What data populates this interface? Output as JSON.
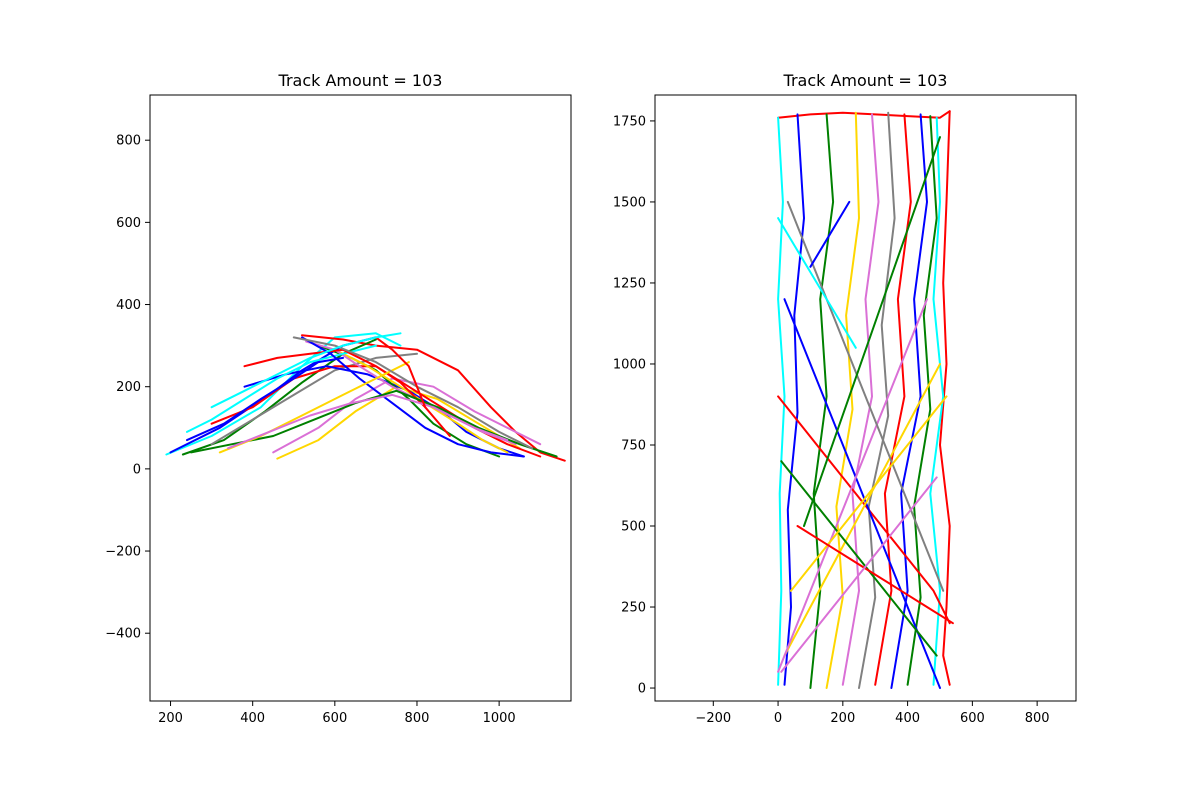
{
  "chart_data": [
    {
      "type": "line",
      "title": "Track Amount = 103",
      "xlabel": "",
      "ylabel": "",
      "xlim": [
        150,
        1175
      ],
      "ylim": [
        -565,
        910
      ],
      "xticks": [
        200,
        400,
        600,
        800,
        1000
      ],
      "yticks": [
        -400,
        -200,
        0,
        200,
        400,
        600,
        800
      ],
      "xtick_labels": [
        "200",
        "400",
        "600",
        "800",
        "1000"
      ],
      "ytick_labels": [
        "−400",
        "−200",
        "0",
        "200",
        "400",
        "600",
        "800"
      ],
      "grid": false,
      "legend": "none",
      "series_colors": [
        "#0000ff",
        "#ff0000",
        "#008000",
        "#ffd700",
        "#da70d6",
        "#00ffff",
        "#808080"
      ],
      "series": [
        {
          "color": "#00ffff",
          "x": [
            190,
            300,
            420,
            520,
            600,
            700,
            760
          ],
          "y": [
            35,
            80,
            150,
            250,
            320,
            330,
            300
          ]
        },
        {
          "color": "#0000ff",
          "x": [
            200,
            320,
            440,
            520,
            620,
            700
          ],
          "y": [
            40,
            100,
            180,
            240,
            300,
            320
          ]
        },
        {
          "color": "#ff0000",
          "x": [
            520,
            620,
            700,
            800,
            900,
            980,
            1040,
            1100,
            1160
          ],
          "y": [
            325,
            315,
            300,
            290,
            240,
            150,
            90,
            40,
            20
          ]
        },
        {
          "color": "#008000",
          "x": [
            230,
            330,
            430,
            520,
            620,
            700
          ],
          "y": [
            35,
            70,
            140,
            210,
            280,
            315
          ]
        },
        {
          "color": "#ffd700",
          "x": [
            460,
            560,
            650,
            750,
            850,
            950,
            1050
          ],
          "y": [
            25,
            70,
            140,
            200,
            170,
            110,
            50
          ]
        },
        {
          "color": "#da70d6",
          "x": [
            450,
            560,
            650,
            740,
            840,
            940,
            1040,
            1100
          ],
          "y": [
            40,
            100,
            170,
            220,
            200,
            140,
            90,
            60
          ]
        },
        {
          "color": "#808080",
          "x": [
            300,
            400,
            500,
            600,
            700,
            800
          ],
          "y": [
            60,
            120,
            180,
            240,
            270,
            280
          ]
        },
        {
          "color": "#ff0000",
          "x": [
            300,
            400,
            500,
            600,
            700,
            780,
            860,
            940,
            1020,
            1100
          ],
          "y": [
            110,
            150,
            220,
            250,
            250,
            200,
            150,
            100,
            60,
            30
          ]
        },
        {
          "color": "#0000ff",
          "x": [
            380,
            480,
            580,
            680,
            780,
            860,
            920,
            1000,
            1060
          ],
          "y": [
            200,
            230,
            250,
            230,
            190,
            140,
            90,
            50,
            30
          ]
        },
        {
          "color": "#008000",
          "x": [
            560,
            640,
            700,
            780,
            840,
            920,
            1000
          ],
          "y": [
            300,
            270,
            240,
            170,
            110,
            60,
            30
          ]
        },
        {
          "color": "#ffd700",
          "x": [
            600,
            680,
            760,
            820,
            900,
            960,
            1020
          ],
          "y": [
            290,
            250,
            200,
            160,
            110,
            70,
            40
          ]
        },
        {
          "color": "#da70d6",
          "x": [
            530,
            600,
            660,
            740,
            820,
            900,
            960,
            1040
          ],
          "y": [
            310,
            290,
            250,
            200,
            160,
            120,
            90,
            60
          ]
        },
        {
          "color": "#00ffff",
          "x": [
            240,
            300,
            380,
            460,
            540,
            620,
            700
          ],
          "y": [
            90,
            120,
            170,
            220,
            260,
            280,
            300
          ]
        },
        {
          "color": "#ff0000",
          "x": [
            380,
            460,
            540,
            620,
            700,
            760,
            820,
            880
          ],
          "y": [
            250,
            270,
            280,
            290,
            250,
            210,
            150,
            80
          ]
        },
        {
          "color": "#0000ff",
          "x": [
            520,
            590,
            660,
            740,
            820,
            900,
            980,
            1060
          ],
          "y": [
            320,
            280,
            220,
            160,
            100,
            60,
            40,
            30
          ]
        },
        {
          "color": "#008000",
          "x": [
            250,
            350,
            450,
            550,
            650,
            750,
            850,
            950,
            1050,
            1140
          ],
          "y": [
            40,
            60,
            80,
            120,
            160,
            190,
            150,
            100,
            60,
            30
          ]
        },
        {
          "color": "#ffd700",
          "x": [
            320,
            420,
            520,
            620,
            700,
            780
          ],
          "y": [
            40,
            80,
            130,
            180,
            220,
            260
          ]
        },
        {
          "color": "#da70d6",
          "x": [
            340,
            440,
            540,
            640,
            740,
            840,
            940,
            1020
          ],
          "y": [
            50,
            90,
            130,
            160,
            180,
            150,
            100,
            70
          ]
        },
        {
          "color": "#808080",
          "x": [
            500,
            600,
            700,
            800,
            900,
            1000,
            1080
          ],
          "y": [
            320,
            300,
            260,
            200,
            150,
            90,
            50
          ]
        },
        {
          "color": "#ff0000",
          "x": [
            700,
            740,
            780,
            800,
            820
          ],
          "y": [
            320,
            290,
            250,
            200,
            150
          ]
        },
        {
          "color": "#0000ff",
          "x": [
            240,
            330,
            420,
            500,
            560,
            620
          ],
          "y": [
            70,
            110,
            170,
            220,
            260,
            270
          ]
        },
        {
          "color": "#00ffff",
          "x": [
            300,
            380,
            460,
            540,
            620,
            700,
            760
          ],
          "y": [
            150,
            190,
            230,
            270,
            300,
            320,
            330
          ]
        }
      ]
    },
    {
      "type": "line",
      "title": "Track Amount = 103",
      "xlabel": "",
      "ylabel": "",
      "xlim": [
        -380,
        920
      ],
      "ylim": [
        -40,
        1830
      ],
      "xticks": [
        -200,
        0,
        200,
        400,
        600,
        800
      ],
      "yticks": [
        0,
        250,
        500,
        750,
        1000,
        1250,
        1500,
        1750
      ],
      "xtick_labels": [
        "−200",
        "0",
        "200",
        "400",
        "600",
        "800"
      ],
      "ytick_labels": [
        "0",
        "250",
        "500",
        "750",
        "1000",
        "1250",
        "1500",
        "1750"
      ],
      "grid": false,
      "legend": "none",
      "series_colors": [
        "#0000ff",
        "#ff0000",
        "#008000",
        "#ffd700",
        "#da70d6",
        "#00ffff",
        "#808080"
      ],
      "series": [
        {
          "color": "#ff0000",
          "x": [
            0,
            100,
            200,
            300,
            400,
            500,
            530
          ],
          "y": [
            1760,
            1770,
            1775,
            1770,
            1765,
            1760,
            1780
          ]
        },
        {
          "color": "#ff0000",
          "x": [
            530,
            520,
            510,
            520,
            500,
            530,
            520,
            510,
            530
          ],
          "y": [
            1780,
            1500,
            1250,
            1000,
            750,
            500,
            250,
            100,
            10
          ]
        },
        {
          "color": "#00ffff",
          "x": [
            0,
            10,
            5,
            20,
            0,
            15,
            0
          ],
          "y": [
            10,
            300,
            600,
            900,
            1200,
            1500,
            1760
          ]
        },
        {
          "color": "#0000ff",
          "x": [
            20,
            40,
            30,
            60,
            50,
            80,
            60
          ],
          "y": [
            10,
            250,
            550,
            850,
            1150,
            1450,
            1770
          ]
        },
        {
          "color": "#008000",
          "x": [
            100,
            130,
            110,
            150,
            130,
            170,
            150
          ],
          "y": [
            0,
            300,
            600,
            900,
            1200,
            1500,
            1770
          ]
        },
        {
          "color": "#ffd700",
          "x": [
            150,
            200,
            180,
            230,
            210,
            250,
            240
          ],
          "y": [
            0,
            280,
            560,
            860,
            1150,
            1450,
            1775
          ]
        },
        {
          "color": "#da70d6",
          "x": [
            200,
            250,
            230,
            290,
            270,
            310,
            290
          ],
          "y": [
            10,
            300,
            600,
            900,
            1200,
            1500,
            1770
          ]
        },
        {
          "color": "#808080",
          "x": [
            250,
            300,
            280,
            340,
            320,
            360,
            340
          ],
          "y": [
            0,
            280,
            560,
            840,
            1120,
            1450,
            1775
          ]
        },
        {
          "color": "#ff0000",
          "x": [
            300,
            350,
            330,
            390,
            370,
            410,
            390
          ],
          "y": [
            10,
            300,
            600,
            900,
            1200,
            1500,
            1770
          ]
        },
        {
          "color": "#0000ff",
          "x": [
            350,
            400,
            380,
            440,
            420,
            460,
            440
          ],
          "y": [
            0,
            300,
            600,
            900,
            1200,
            1500,
            1770
          ]
        },
        {
          "color": "#008000",
          "x": [
            400,
            440,
            420,
            470,
            450,
            490,
            470
          ],
          "y": [
            10,
            280,
            560,
            860,
            1150,
            1450,
            1765
          ]
        },
        {
          "color": "#00ffff",
          "x": [
            480,
            500,
            470,
            510,
            480,
            500,
            490
          ],
          "y": [
            10,
            300,
            600,
            900,
            1200,
            1500,
            1760
          ]
        },
        {
          "color": "#ff0000",
          "x": [
            0,
            80,
            160,
            240,
            320,
            400,
            480,
            530
          ],
          "y": [
            900,
            800,
            700,
            600,
            500,
            400,
            300,
            200
          ]
        },
        {
          "color": "#0000ff",
          "x": [
            20,
            100,
            180,
            260,
            340,
            420,
            500
          ],
          "y": [
            1200,
            1000,
            800,
            600,
            400,
            200,
            0
          ]
        },
        {
          "color": "#ffd700",
          "x": [
            500,
            420,
            340,
            260,
            180,
            100,
            20
          ],
          "y": [
            1000,
            850,
            700,
            550,
            400,
            250,
            100
          ]
        },
        {
          "color": "#da70d6",
          "x": [
            460,
            380,
            300,
            220,
            140,
            60,
            0
          ],
          "y": [
            1200,
            1000,
            800,
            600,
            400,
            200,
            50
          ]
        },
        {
          "color": "#008000",
          "x": [
            10,
            90,
            170,
            250,
            330,
            410,
            490
          ],
          "y": [
            700,
            600,
            500,
            400,
            300,
            200,
            100
          ]
        },
        {
          "color": "#808080",
          "x": [
            30,
            110,
            190,
            270,
            350,
            430,
            510
          ],
          "y": [
            1500,
            1300,
            1100,
            900,
            700,
            500,
            300
          ]
        },
        {
          "color": "#ffd700",
          "x": [
            40,
            120,
            200,
            280,
            360,
            440,
            520
          ],
          "y": [
            300,
            400,
            500,
            600,
            700,
            800,
            900
          ]
        },
        {
          "color": "#ff0000",
          "x": [
            60,
            140,
            220,
            300,
            380,
            460,
            540
          ],
          "y": [
            500,
            450,
            400,
            350,
            300,
            250,
            200
          ]
        },
        {
          "color": "#0000ff",
          "x": [
            100,
            160,
            220
          ],
          "y": [
            1300,
            1400,
            1500
          ]
        },
        {
          "color": "#00ffff",
          "x": [
            0,
            60,
            120,
            180,
            240
          ],
          "y": [
            1450,
            1350,
            1250,
            1150,
            1050
          ]
        },
        {
          "color": "#da70d6",
          "x": [
            10,
            90,
            170,
            250,
            330,
            410,
            490
          ],
          "y": [
            50,
            150,
            250,
            350,
            450,
            550,
            650
          ]
        },
        {
          "color": "#008000",
          "x": [
            500,
            430,
            360,
            290,
            220,
            150,
            80
          ],
          "y": [
            1700,
            1500,
            1300,
            1100,
            900,
            700,
            500
          ]
        }
      ]
    }
  ]
}
